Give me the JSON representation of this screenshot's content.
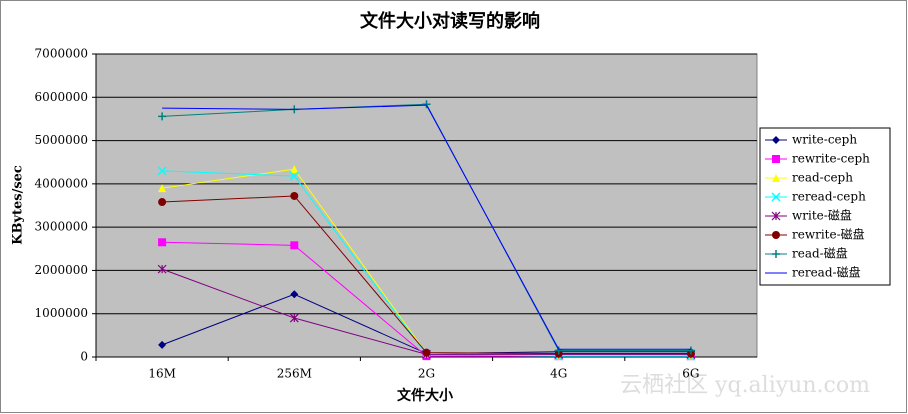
{
  "chart_data": {
    "type": "line",
    "title": "文件大小对读写的影响",
    "x_label": "文件大小",
    "y_label": "KBytes/sec",
    "watermark": "云栖社区 yq.aliyun.com",
    "categories": [
      "16M",
      "256M",
      "2G",
      "4G",
      "6G"
    ],
    "ylim": [
      0,
      7000000
    ],
    "yticks": [
      0,
      1000000,
      2000000,
      3000000,
      4000000,
      5000000,
      6000000,
      7000000
    ],
    "grid": true,
    "legend": "right",
    "series": [
      {
        "name": "write-ceph",
        "color": "#000080",
        "marker": "diamond",
        "values": [
          280000,
          1450000,
          80000,
          120000,
          120000
        ]
      },
      {
        "name": "rewrite-ceph",
        "color": "#ff00ff",
        "marker": "square",
        "values": [
          2650000,
          2580000,
          20000,
          20000,
          20000
        ]
      },
      {
        "name": "read-ceph",
        "color": "#ffff00",
        "marker": "triangle",
        "values": [
          3900000,
          4340000,
          80000,
          30000,
          30000
        ]
      },
      {
        "name": "reread-ceph",
        "color": "#00ffff",
        "marker": "x",
        "values": [
          4300000,
          4180000,
          60000,
          20000,
          20000
        ]
      },
      {
        "name": "write-磁盘",
        "color": "#800080",
        "marker": "star",
        "values": [
          2030000,
          900000,
          60000,
          60000,
          60000
        ]
      },
      {
        "name": "rewrite-磁盘",
        "color": "#800000",
        "marker": "circle",
        "values": [
          3580000,
          3720000,
          100000,
          80000,
          80000
        ]
      },
      {
        "name": "read-磁盘",
        "color": "#008080",
        "marker": "plus",
        "values": [
          5560000,
          5720000,
          5840000,
          150000,
          150000
        ]
      },
      {
        "name": "reread-磁盘",
        "color": "#0000ff",
        "marker": "none",
        "values": [
          5750000,
          5720000,
          5820000,
          180000,
          180000
        ]
      }
    ]
  }
}
